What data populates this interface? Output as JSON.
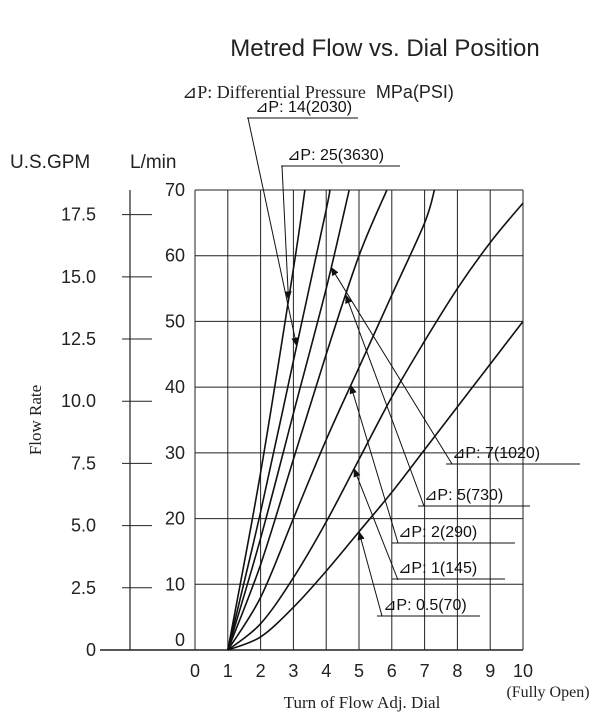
{
  "chart_data": {
    "type": "line",
    "title": "Metred Flow vs. Dial Position",
    "subtitle": "⊿P: Differential Pressure MPa(PSI)",
    "subtitle_serif_part": "⊿P: Differential Pressure",
    "subtitle_sans_part": "MPa(PSI)",
    "xlabel": "Turn of Flow Adj. Dial",
    "xlabel_note": "(Fully Open)",
    "ylabel": "Flow Rate",
    "y_unit_left": "U.S.GPM",
    "y_unit_right": "L/min",
    "xlim": [
      0,
      10
    ],
    "ylim": [
      0,
      70
    ],
    "grid": true,
    "x_ticks": [
      "0",
      "1",
      "2",
      "3",
      "4",
      "5",
      "6",
      "7",
      "8",
      "9",
      "10"
    ],
    "y_ticks_lpm": [
      "0",
      "10",
      "20",
      "30",
      "40",
      "50",
      "60",
      "70"
    ],
    "y_ticks_gpm": [
      {
        "label": "0",
        "value": 0
      },
      {
        "label": "2.5",
        "value": 2.5
      },
      {
        "label": "5.0",
        "value": 5.0
      },
      {
        "label": "7.5",
        "value": 7.5
      },
      {
        "label": "10.0",
        "value": 10.0
      },
      {
        "label": "12.5",
        "value": 12.5
      },
      {
        "label": "15.0",
        "value": 15.0
      },
      {
        "label": "17.5",
        "value": 17.5
      }
    ],
    "series": [
      {
        "name": "⊿P: 0.5(70)",
        "x": [
          1,
          2,
          3,
          4,
          5,
          6,
          7,
          8,
          9,
          10
        ],
        "y": [
          0,
          2,
          6.5,
          12,
          18,
          24,
          30.5,
          37,
          43.5,
          50
        ]
      },
      {
        "name": "⊿P: 1(145)",
        "x": [
          1,
          2,
          3,
          4,
          5,
          6,
          7,
          8,
          9,
          10
        ],
        "y": [
          0,
          4,
          11,
          19.5,
          29,
          38.5,
          47,
          55,
          62,
          68
        ]
      },
      {
        "name": "⊿P: 2(290)",
        "x": [
          1,
          2,
          3,
          4,
          5,
          6,
          7,
          7.3
        ],
        "y": [
          0,
          8,
          20,
          32,
          43,
          54,
          65,
          70
        ]
      },
      {
        "name": "⊿P: 5(730)",
        "x": [
          1,
          2,
          3,
          4,
          5,
          5.85
        ],
        "y": [
          0,
          13,
          29,
          45,
          60,
          70
        ]
      },
      {
        "name": "⊿P: 7(1020)",
        "x": [
          1,
          2,
          3,
          4,
          4.7
        ],
        "y": [
          0,
          17,
          36,
          55,
          70
        ]
      },
      {
        "name": "⊿P: 14(2030)",
        "x": [
          1,
          2,
          3,
          4,
          4.1
        ],
        "y": [
          0,
          21,
          44,
          67,
          70
        ]
      },
      {
        "name": "⊿P: 25(3630)",
        "x": [
          1,
          2,
          3,
          3.35
        ],
        "y": [
          0,
          27,
          58,
          70
        ]
      }
    ]
  }
}
